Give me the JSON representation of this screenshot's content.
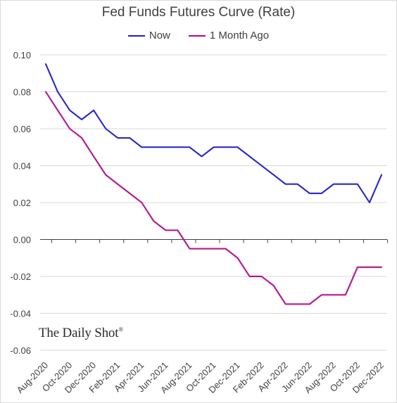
{
  "chart_data": {
    "type": "line",
    "title": "Fed Funds Futures Curve (Rate)",
    "xlabel": "",
    "ylabel": "",
    "ylim": [
      -0.06,
      0.1
    ],
    "yticks": [
      0.1,
      0.08,
      0.06,
      0.04,
      0.02,
      0.0,
      -0.02,
      -0.04,
      -0.06
    ],
    "ytick_labels": [
      "0.10",
      "0.08",
      "0.06",
      "0.04",
      "0.02",
      "0.00",
      "-0.02",
      "-0.04",
      "-0.06"
    ],
    "grid": true,
    "legend_position": "top-center",
    "categories": [
      "Aug-2020",
      "Sep-2020",
      "Oct-2020",
      "Nov-2020",
      "Dec-2020",
      "Jan-2021",
      "Feb-2021",
      "Mar-2021",
      "Apr-2021",
      "May-2021",
      "Jun-2021",
      "Jul-2021",
      "Aug-2021",
      "Sep-2021",
      "Oct-2021",
      "Nov-2021",
      "Dec-2021",
      "Jan-2022",
      "Feb-2022",
      "Mar-2022",
      "Apr-2022",
      "May-2022",
      "Jun-2022",
      "Jul-2022",
      "Aug-2022",
      "Sep-2022",
      "Oct-2022",
      "Nov-2022",
      "Dec-2022"
    ],
    "xtick_labels": [
      "Aug-2020",
      "Oct-2020",
      "Dec-2020",
      "Feb-2021",
      "Apr-2021",
      "Jun-2021",
      "Aug-2021",
      "Oct-2021",
      "Dec-2021",
      "Feb-2022",
      "Apr-2022",
      "Jun-2022",
      "Aug-2022",
      "Oct-2022",
      "Dec-2022"
    ],
    "series": [
      {
        "name": "Now",
        "color": "#1a1aff",
        "values": [
          0.095,
          0.08,
          0.07,
          0.065,
          0.07,
          0.06,
          0.055,
          0.055,
          0.05,
          0.05,
          0.05,
          0.05,
          0.05,
          0.045,
          0.05,
          0.05,
          0.05,
          0.045,
          0.04,
          0.035,
          0.03,
          0.03,
          0.025,
          0.025,
          0.03,
          0.03,
          0.03,
          0.02,
          0.035
        ]
      },
      {
        "name": "1 Month Ago",
        "color": "#cc0099",
        "values": [
          0.08,
          0.07,
          0.06,
          0.055,
          0.045,
          0.035,
          0.03,
          0.025,
          0.02,
          0.01,
          0.005,
          0.005,
          -0.005,
          -0.005,
          -0.005,
          -0.005,
          -0.01,
          -0.02,
          -0.02,
          -0.025,
          -0.035,
          -0.035,
          -0.035,
          -0.03,
          -0.03,
          -0.03,
          -0.015,
          -0.015,
          -0.015
        ]
      }
    ]
  },
  "watermark": {
    "text": "The Daily Shot",
    "mark": "®"
  }
}
